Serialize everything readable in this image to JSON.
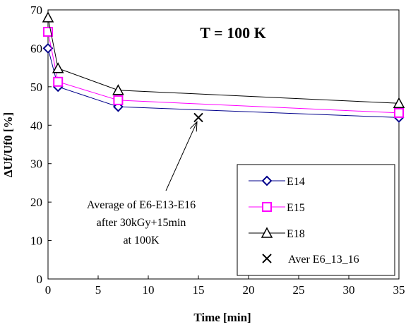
{
  "chart_data": {
    "type": "line",
    "title": "T = 100 K",
    "xlabel": "Time [min]",
    "ylabel": "ΔUf/Uf0 [%]",
    "xlim": [
      0,
      35
    ],
    "ylim": [
      0,
      70
    ],
    "xticks": [
      0,
      5,
      10,
      15,
      20,
      25,
      30,
      35
    ],
    "yticks": [
      0,
      10,
      20,
      30,
      40,
      50,
      60,
      70
    ],
    "grid": false,
    "legend_position": "bottom-right",
    "series": [
      {
        "name": "E14",
        "marker": "diamond",
        "line_color": "#00008b",
        "marker_color": "#00008b",
        "x": [
          0,
          1,
          7,
          35
        ],
        "y": [
          60,
          50,
          44.8,
          42
        ]
      },
      {
        "name": "E15",
        "marker": "square",
        "line_color": "#ff00ff",
        "marker_color": "#ff00ff",
        "x": [
          0,
          1,
          7,
          35
        ],
        "y": [
          64.3,
          51.3,
          46.5,
          43.2
        ]
      },
      {
        "name": "E18",
        "marker": "triangle",
        "line_color": "#000000",
        "marker_color": "#000000",
        "x": [
          0,
          1,
          7,
          35
        ],
        "y": [
          68,
          54.8,
          49.1,
          45.7
        ]
      },
      {
        "name": "Aver E6_13_16",
        "marker": "x",
        "line_color": "none",
        "marker_color": "#000000",
        "x": [
          15
        ],
        "y": [
          42
        ]
      }
    ],
    "annotation": {
      "lines": [
        "Average of E6-E13-E16",
        "after 30kGy+15min",
        "at 100K"
      ],
      "points_to": {
        "x": 15,
        "y": 42
      }
    }
  }
}
